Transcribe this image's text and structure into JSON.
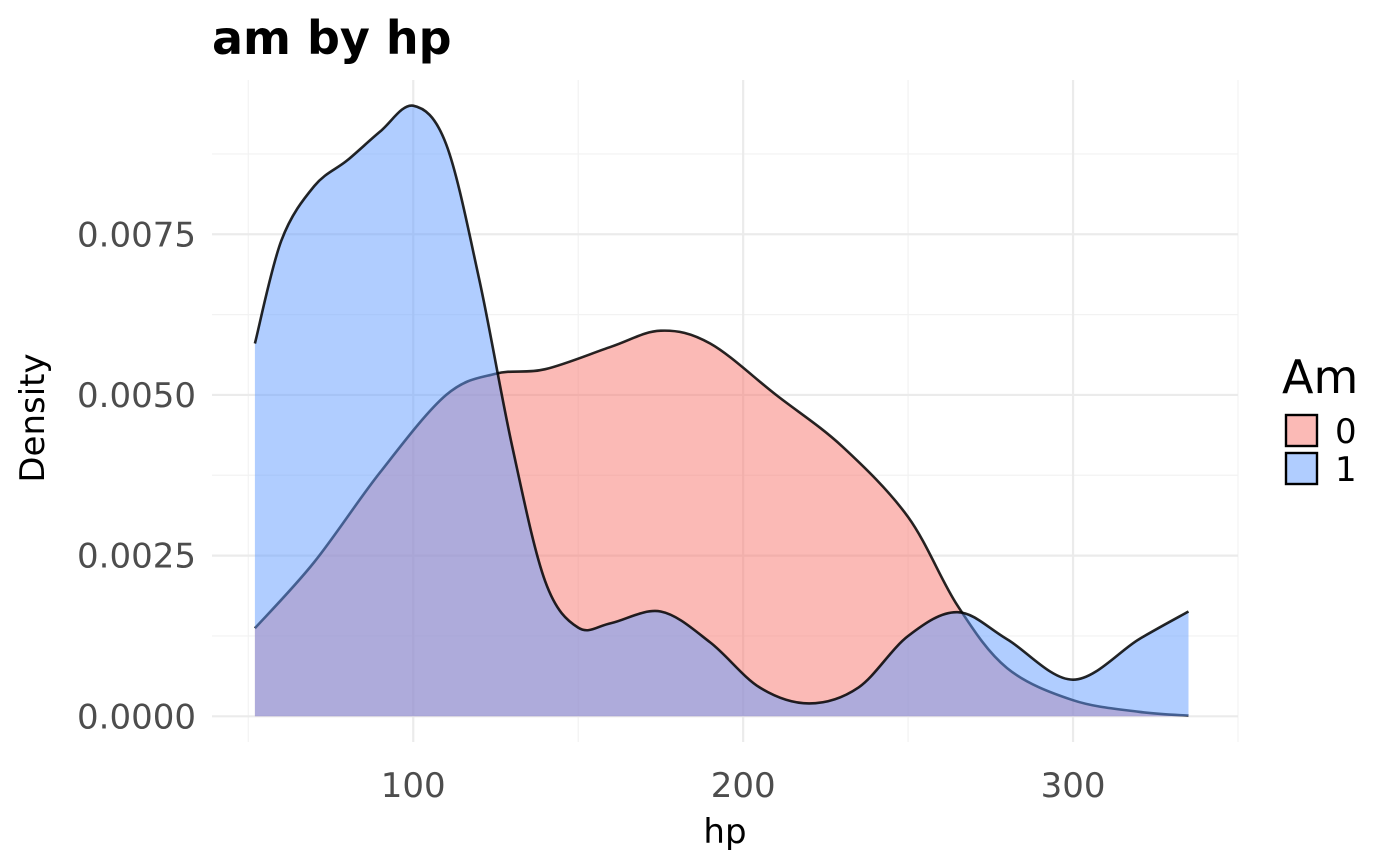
{
  "chart_data": {
    "type": "area",
    "title": "am by hp",
    "xlabel": "hp",
    "ylabel": "Density",
    "xlim": [
      39,
      350
    ],
    "ylim": [
      -0.0004,
      0.0099
    ],
    "x_ticks": [
      100,
      200,
      300
    ],
    "x_tick_labels": [
      "100",
      "200",
      "300"
    ],
    "y_ticks": [
      0,
      0.0025,
      0.005,
      0.0075
    ],
    "y_tick_labels": [
      "0.0000",
      "0.0025",
      "0.0050",
      "0.0075"
    ],
    "grid": true,
    "legend": {
      "title": "Am",
      "position": "right"
    },
    "series": [
      {
        "name": "0",
        "color": "#F8766D",
        "x": [
          52,
          70,
          90,
          110,
          125,
          140,
          160,
          175,
          190,
          210,
          230,
          250,
          265,
          280,
          300,
          320,
          335
        ],
        "y": [
          0.00137,
          0.0024,
          0.0038,
          0.005,
          0.00533,
          0.0054,
          0.00575,
          0.006,
          0.0058,
          0.005,
          0.0042,
          0.0031,
          0.00172,
          0.00075,
          0.00025,
          7e-05,
          1e-05
        ]
      },
      {
        "name": "1",
        "color": "#619CFF",
        "x": [
          52,
          60,
          70,
          80,
          90,
          100,
          110,
          120,
          130,
          140,
          150,
          160,
          175,
          190,
          205,
          220,
          235,
          250,
          265,
          280,
          300,
          320,
          335
        ],
        "y": [
          0.0058,
          0.0074,
          0.00825,
          0.00865,
          0.0091,
          0.0095,
          0.0089,
          0.0068,
          0.0042,
          0.0021,
          0.00138,
          0.00145,
          0.00163,
          0.00115,
          0.00045,
          0.0002,
          0.00045,
          0.00125,
          0.00162,
          0.0012,
          0.00057,
          0.0012,
          0.00163
        ]
      }
    ]
  }
}
